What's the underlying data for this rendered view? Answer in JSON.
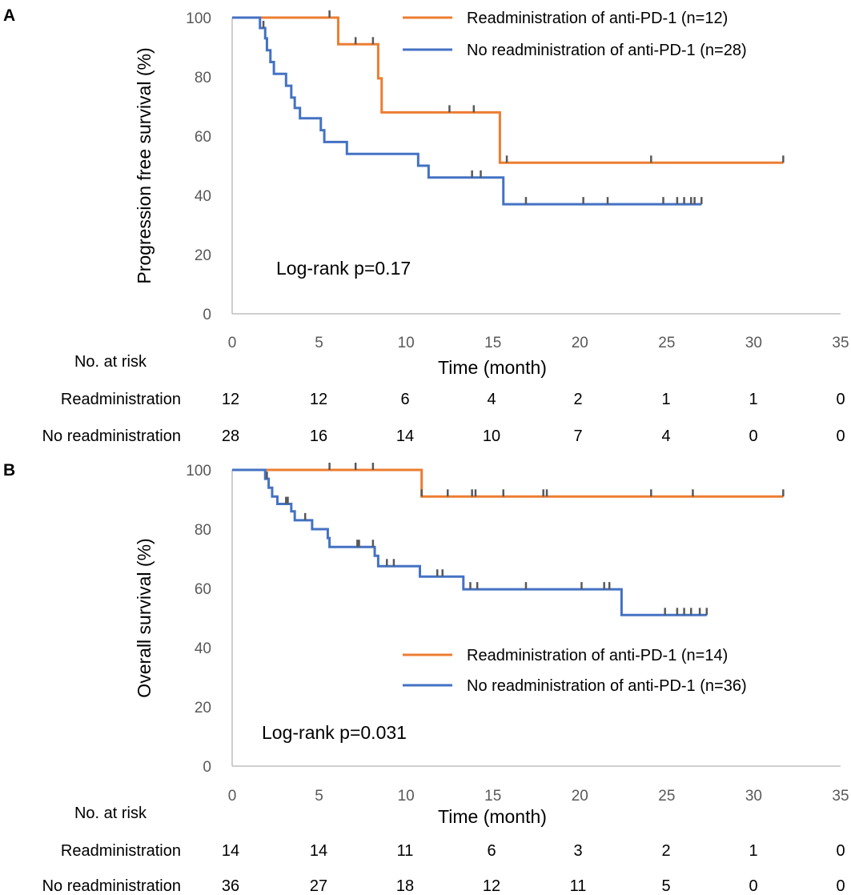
{
  "chart_data": [
    {
      "panel": "A",
      "type": "line",
      "chart_kind": "kaplan-meier",
      "ylabel": "Progression free survival (%)",
      "xlabel": "Time (month)",
      "xlim": [
        0,
        35
      ],
      "ylim": [
        0,
        100
      ],
      "xticks": [
        "0",
        "5",
        "10",
        "15",
        "20",
        "25",
        "30",
        "35"
      ],
      "yticks": [
        "0",
        "20",
        "40",
        "60",
        "80",
        "100"
      ],
      "annotation": "Log-rank p=0.17",
      "series": [
        {
          "name": "Readministration of anti-PD-1 (n=12)",
          "color": "#ED7D31",
          "steps": [
            [
              0,
              100
            ],
            [
              6.1,
              91
            ],
            [
              8.4,
              79.5
            ],
            [
              8.6,
              68
            ],
            [
              15.4,
              51
            ]
          ],
          "end": 31.7,
          "censors": [
            5.6,
            7.1,
            8.1,
            12.5,
            13.9,
            15.8,
            24.1,
            31.7
          ]
        },
        {
          "name": "No readministration of anti-PD-1 (n=28)",
          "color": "#4472C4",
          "steps": [
            [
              0,
              100
            ],
            [
              1.6,
              96.5
            ],
            [
              1.9,
              93
            ],
            [
              2.0,
              89
            ],
            [
              2.2,
              85
            ],
            [
              2.4,
              81
            ],
            [
              3.1,
              77
            ],
            [
              3.4,
              73
            ],
            [
              3.6,
              69.5
            ],
            [
              3.9,
              66
            ],
            [
              5.1,
              62
            ],
            [
              5.3,
              58
            ],
            [
              6.6,
              54
            ],
            [
              10.7,
              50
            ],
            [
              11.3,
              46
            ],
            [
              15.6,
              37
            ]
          ],
          "end": 27.0,
          "censors": [
            1.8,
            13.8,
            14.3,
            16.9,
            20.2,
            21.6,
            24.8,
            25.6,
            26.0,
            26.4,
            26.6,
            27.0
          ]
        }
      ],
      "at_risk": {
        "label": "No. at risk",
        "rows": [
          {
            "name": "Readministration",
            "values": [
              "12",
              "12",
              "6",
              "4",
              "2",
              "1",
              "1",
              "0"
            ]
          },
          {
            "name": "No readministration",
            "values": [
              "28",
              "16",
              "14",
              "10",
              "7",
              "4",
              "0",
              "0"
            ]
          }
        ]
      }
    },
    {
      "panel": "B",
      "type": "line",
      "chart_kind": "kaplan-meier",
      "ylabel": "Overall survival (%)",
      "xlabel": "Time (month)",
      "xlim": [
        0,
        35
      ],
      "ylim": [
        0,
        100
      ],
      "xticks": [
        "0",
        "5",
        "10",
        "15",
        "20",
        "25",
        "30",
        "35"
      ],
      "yticks": [
        "0",
        "20",
        "40",
        "60",
        "80",
        "100"
      ],
      "annotation": "Log-rank p=0.031",
      "series": [
        {
          "name": "Readministration of anti-PD-1 (n=14)",
          "color": "#ED7D31",
          "steps": [
            [
              0,
              100
            ],
            [
              10.9,
              91
            ]
          ],
          "end": 31.7,
          "censors": [
            5.6,
            7.1,
            8.1,
            10.9,
            12.4,
            13.8,
            14.0,
            15.6,
            17.9,
            18.1,
            24.1,
            26.5,
            31.7
          ]
        },
        {
          "name": "No readministration of anti-PD-1 (n=36)",
          "color": "#4472C4",
          "steps": [
            [
              0,
              100
            ],
            [
              1.9,
              97
            ],
            [
              2.1,
              94
            ],
            [
              2.3,
              91
            ],
            [
              2.6,
              88.5
            ],
            [
              3.4,
              86
            ],
            [
              3.6,
              83
            ],
            [
              4.6,
              80
            ],
            [
              5.5,
              77
            ],
            [
              5.6,
              74
            ],
            [
              8.2,
              71
            ],
            [
              8.4,
              67.5
            ],
            [
              10.8,
              64
            ],
            [
              13.3,
              59.7
            ],
            [
              22.4,
              51
            ]
          ],
          "end": 27.3,
          "censors": [
            2.0,
            3.1,
            3.2,
            4.2,
            7.2,
            7.3,
            8.1,
            8.9,
            9.3,
            11.8,
            12.1,
            13.7,
            14.1,
            16.9,
            20.1,
            21.4,
            21.7,
            24.9,
            25.6,
            26.0,
            26.4,
            26.9,
            27.3
          ]
        }
      ],
      "at_risk": {
        "label": "No. at risk",
        "rows": [
          {
            "name": "Readministration",
            "values": [
              "14",
              "14",
              "11",
              "6",
              "3",
              "2",
              "1",
              "0"
            ]
          },
          {
            "name": "No readministration",
            "values": [
              "36",
              "27",
              "18",
              "12",
              "11",
              "5",
              "0",
              "0"
            ]
          }
        ]
      }
    }
  ]
}
